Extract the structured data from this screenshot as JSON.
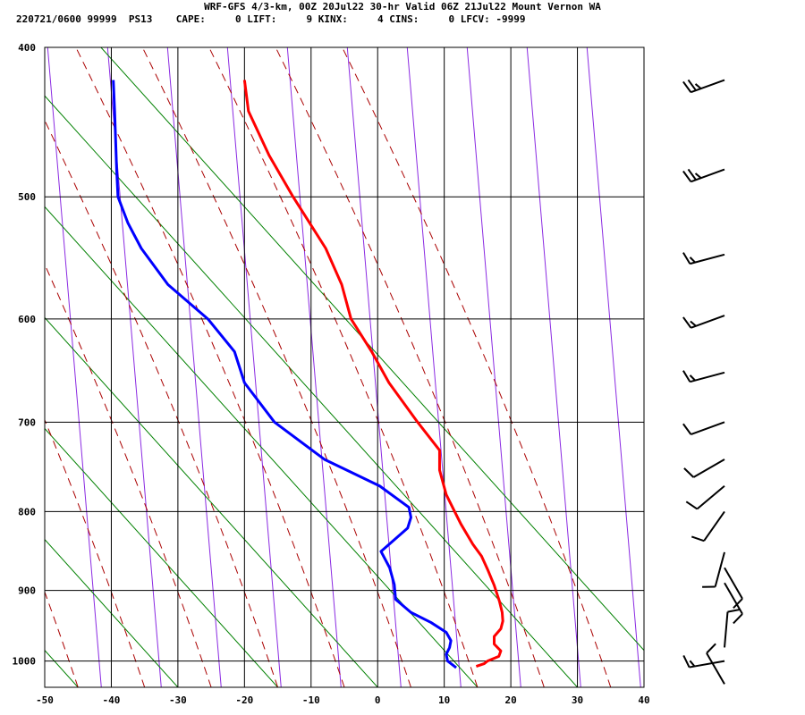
{
  "header": {
    "title_line": "WRF-GFS 4/3-km, 00Z 20Jul22 30-hr Valid 06Z 21Jul22 Mount Vernon WA",
    "stats_line": "220721/0600 99999  PS13    CAPE:     0 LIFT:     9 KINX:     4 CINS:     0 LFCV: -9999"
  },
  "chart_data": {
    "type": "line",
    "title": "WRF-GFS 4/3-km, 00Z 20Jul22 30-hr Valid 06Z 21Jul22 Mount Vernon WA",
    "xlabel": "",
    "ylabel": "",
    "xlim": [
      -50,
      40
    ],
    "ylim": [
      1040,
      400
    ],
    "y_scale": "log",
    "x_ticks": [
      -50,
      -40,
      -30,
      -20,
      -10,
      0,
      10,
      20,
      30,
      40
    ],
    "y_ticks": [
      400,
      500,
      600,
      700,
      800,
      900,
      1000
    ],
    "grid": true,
    "colors": {
      "temperature": "#ff0000",
      "dewpoint": "#0000ff",
      "dry_adiabat": "#008000",
      "moist_adiabat": "#aa0000",
      "isotherm_aux": "#8b2be2",
      "grid": "#000000",
      "wind_barb": "#000000"
    },
    "series": [
      {
        "key": "temperature",
        "pressure": [
          1008,
          1004,
          1000,
          993,
          985,
          975,
          964,
          953,
          942,
          930,
          915,
          893,
          872,
          855,
          840,
          815,
          780,
          752,
          730,
          700,
          660,
          630,
          600,
          570,
          540,
          500,
          470,
          440,
          420
        ],
        "values": [
          14.8,
          16,
          16.5,
          18.2,
          18.5,
          17.5,
          17.5,
          18.5,
          18.8,
          18.7,
          18.3,
          17.5,
          16.5,
          15.6,
          14.3,
          12.5,
          10.3,
          9.3,
          9.3,
          6,
          1.7,
          -0.9,
          -4,
          -5.4,
          -7.8,
          -12.7,
          -16.3,
          -19.4,
          -20
        ]
      },
      {
        "key": "dewpoint",
        "pressure": [
          1010,
          1000,
          990,
          980,
          970,
          958,
          944,
          930,
          912,
          892,
          870,
          849,
          820,
          807,
          795,
          770,
          740,
          700,
          660,
          630,
          600,
          570,
          540,
          520,
          500,
          480,
          440,
          420
        ],
        "values": [
          11.8,
          10.5,
          10.3,
          10.8,
          11,
          10.3,
          8,
          5,
          2.7,
          2.5,
          1.8,
          0.5,
          4.5,
          5,
          4.7,
          0.3,
          -8,
          -15.5,
          -20,
          -21.5,
          -25.5,
          -31.5,
          -35.5,
          -37.5,
          -39,
          -39.2,
          -39.5,
          -39.7
        ]
      }
    ],
    "isotherms_aux_x_at_bottom": [
      -50.5,
      -41.5,
      -32.5,
      -23.5,
      -14.5,
      -5.5,
      3.5,
      12.5,
      21.5,
      30.5,
      39.5,
      48.5,
      57.5
    ],
    "dry_adiabats_x_at_bottom": [
      -60,
      -45,
      -30,
      -15,
      0,
      15,
      30,
      45
    ],
    "moist_adiabats_x_at_bottom": [
      -55,
      -45,
      -35,
      -25,
      -15,
      -5,
      5,
      15,
      25,
      35
    ],
    "wind_barbs": [
      {
        "pressure": 420,
        "dir": 250,
        "kt": 25
      },
      {
        "pressure": 480,
        "dir": 250,
        "kt": 25
      },
      {
        "pressure": 545,
        "dir": 255,
        "kt": 15
      },
      {
        "pressure": 597,
        "dir": 250,
        "kt": 15
      },
      {
        "pressure": 650,
        "dir": 255,
        "kt": 15
      },
      {
        "pressure": 700,
        "dir": 250,
        "kt": 10
      },
      {
        "pressure": 740,
        "dir": 240,
        "kt": 10
      },
      {
        "pressure": 770,
        "dir": 230,
        "kt": 10
      },
      {
        "pressure": 800,
        "dir": 215,
        "kt": 10
      },
      {
        "pressure": 850,
        "dir": 195,
        "kt": 10
      },
      {
        "pressure": 870,
        "dir": 150,
        "kt": 10
      },
      {
        "pressure": 890,
        "dir": 150,
        "kt": 10
      },
      {
        "pressure": 980,
        "dir": 5,
        "kt": 10
      },
      {
        "pressure": 1000,
        "dir": 260,
        "kt": 15
      },
      {
        "pressure": 1035,
        "dir": 330,
        "kt": 10
      }
    ]
  }
}
